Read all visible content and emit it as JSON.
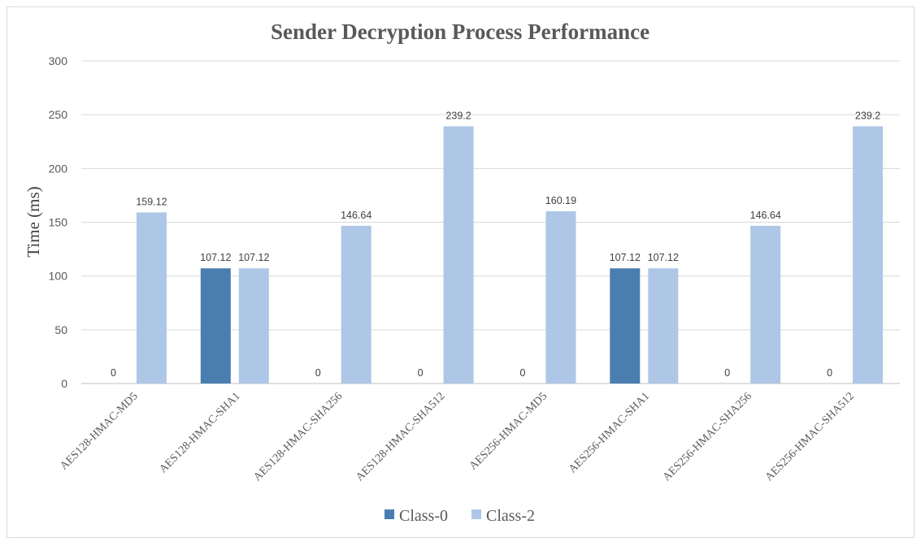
{
  "chart_data": {
    "type": "bar",
    "title": "Sender Decryption Process Performance",
    "xlabel": "",
    "ylabel": "Time (ms)",
    "ylim": [
      0,
      300
    ],
    "yticks": [
      0,
      50,
      100,
      150,
      200,
      250,
      300
    ],
    "grid": true,
    "legend_position": "bottom",
    "categories": [
      "AES128-HMAC-MD5",
      "AES128-HMAC-SHA1",
      "AES128-HMAC-SHA256",
      "AES128-HMAC-SHA512",
      "AES256-HMAC-MD5",
      "AES256-HMAC-SHA1",
      "AES256-HMAC-SHA256",
      "AES256-HMAC-SHA512"
    ],
    "series": [
      {
        "name": "Class-0",
        "color": "#4a7eb0",
        "values": [
          0,
          107.12,
          0,
          0,
          0,
          107.12,
          0,
          0
        ],
        "labels": [
          "0",
          "107.12",
          "0",
          "0",
          "0",
          "107.12",
          "0",
          "0"
        ]
      },
      {
        "name": "Class-2",
        "color": "#aec7e6",
        "values": [
          159.12,
          107.12,
          146.64,
          239.2,
          160.19,
          107.12,
          146.64,
          239.2
        ],
        "labels": [
          "159.12",
          "107.12",
          "146.64",
          "239.2",
          "160.19",
          "107.12",
          "146.64",
          "239.2"
        ]
      }
    ]
  }
}
